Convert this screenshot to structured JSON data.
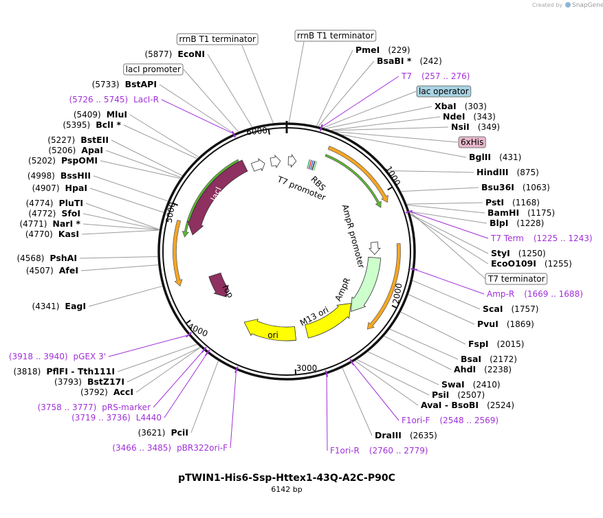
{
  "credit": {
    "prefix": "Created by",
    "brand": "SnapGene"
  },
  "title": "pTWIN1-His6-Ssp-Httex1-43Q-A2C-P90C",
  "subtitle": "6142 bp",
  "ruler": [
    "1000",
    "2000",
    "3000",
    "4000",
    "5000",
    "6000"
  ],
  "map_features": [
    "T7 promoter",
    "RBS",
    "AmpR promoter",
    "AmpR",
    "M13 ori",
    "ori",
    "rop",
    "lacI"
  ],
  "right_labels": [
    {
      "name": "rrnB T1 terminator"
    },
    {
      "name": "PmeI",
      "position": "(229)"
    },
    {
      "name": "BsaBI *",
      "position": "(242)"
    },
    {
      "name": "T7",
      "position": "(257 .. 276)"
    },
    {
      "name": "lac operator"
    },
    {
      "name": "XbaI",
      "position": "(303)"
    },
    {
      "name": "NdeI",
      "position": "(343)"
    },
    {
      "name": "NsiI",
      "position": "(349)"
    },
    {
      "name": "6xHis"
    },
    {
      "name": "BglII",
      "position": "(431)"
    },
    {
      "name": "HindIII",
      "position": "(875)"
    },
    {
      "name": "Bsu36I",
      "position": "(1063)"
    },
    {
      "name": "PstI",
      "position": "(1168)"
    },
    {
      "name": "BamHI",
      "position": "(1175)"
    },
    {
      "name": "BlpI",
      "position": "(1228)"
    },
    {
      "name": "T7 Term",
      "position": "(1225 .. 1243)"
    },
    {
      "name": "StyI",
      "position": "(1250)"
    },
    {
      "name": "EcoO109I",
      "position": "(1255)"
    },
    {
      "name": "T7 terminator"
    },
    {
      "name": "Amp-R",
      "position": "(1669 .. 1688)"
    },
    {
      "name": "ScaI",
      "position": "(1757)"
    },
    {
      "name": "PvuI",
      "position": "(1869)"
    },
    {
      "name": "FspI",
      "position": "(2015)"
    },
    {
      "name": "BsaI",
      "position": "(2172)"
    },
    {
      "name": "AhdI",
      "position": "(2238)"
    },
    {
      "name": "SwaI",
      "position": "(2410)"
    },
    {
      "name": "PsiI",
      "position": "(2507)"
    },
    {
      "name": "AvaI - BsoBI",
      "position": "(2524)"
    },
    {
      "name": "F1ori-F",
      "position": "(2548 .. 2569)"
    },
    {
      "name": "DraIII",
      "position": "(2635)"
    },
    {
      "name": "F1ori-R",
      "position": "(2760 .. 2779)"
    }
  ],
  "left_labels": [
    {
      "name": "rrnB T1 terminator"
    },
    {
      "name": "EcoNI",
      "position": "(5877)"
    },
    {
      "name": "lacI promoter"
    },
    {
      "name": "BstAPI",
      "position": "(5733)"
    },
    {
      "name": "LacI-R",
      "position": "(5726 .. 5745)"
    },
    {
      "name": "MluI",
      "position": "(5409)"
    },
    {
      "name": "BclI *",
      "position": "(5395)"
    },
    {
      "name": "BstEII",
      "position": "(5227)"
    },
    {
      "name": "ApaI",
      "position": "(5206)"
    },
    {
      "name": "PspOMI",
      "position": "(5202)"
    },
    {
      "name": "BssHII",
      "position": "(4998)"
    },
    {
      "name": "HpaI",
      "position": "(4907)"
    },
    {
      "name": "PluTI",
      "position": "(4774)"
    },
    {
      "name": "SfoI",
      "position": "(4772)"
    },
    {
      "name": "NarI *",
      "position": "(4771)"
    },
    {
      "name": "KasI",
      "position": "(4770)"
    },
    {
      "name": "PshAI",
      "position": "(4568)"
    },
    {
      "name": "AfeI",
      "position": "(4507)"
    },
    {
      "name": "EagI",
      "position": "(4341)"
    },
    {
      "name": "pGEX 3'",
      "position": "(3918 .. 3940)"
    },
    {
      "name": "PflFI - Tth111I",
      "position": "(3818)"
    },
    {
      "name": "BstZ17I",
      "position": "(3793)"
    },
    {
      "name": "AccI",
      "position": "(3792)"
    },
    {
      "name": "pRS-marker",
      "position": "(3758 .. 3777)"
    },
    {
      "name": "L4440",
      "position": "(3719 .. 3736)"
    },
    {
      "name": "PciI",
      "position": "(3621)"
    },
    {
      "name": "pBR322ori-F",
      "position": "(3466 .. 3485)"
    }
  ]
}
